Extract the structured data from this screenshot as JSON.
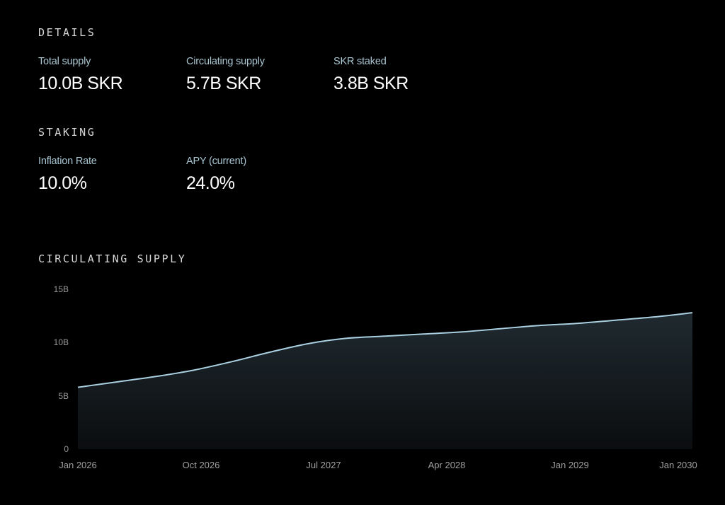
{
  "details": {
    "title": "DETAILS",
    "stats": [
      {
        "label": "Total supply",
        "value": "10.0B SKR"
      },
      {
        "label": "Circulating supply",
        "value": "5.7B SKR"
      },
      {
        "label": "SKR staked",
        "value": "3.8B SKR"
      }
    ]
  },
  "staking": {
    "title": "STAKING",
    "stats": [
      {
        "label": "Inflation Rate",
        "value": "10.0%"
      },
      {
        "label": "APY (current)",
        "value": "24.0%"
      }
    ]
  },
  "circulating": {
    "title": "CIRCULATING SUPPLY"
  },
  "colors": {
    "line": "#a9cfe0",
    "fill_top": "#1f2a30",
    "fill_bottom": "#0b0d0f",
    "label": "#a9c6d2"
  },
  "chart_data": {
    "type": "area",
    "title": "CIRCULATING SUPPLY",
    "xlabel": "",
    "ylabel": "",
    "ylim": [
      0,
      15
    ],
    "yticks": [
      "0",
      "5B",
      "10B",
      "15B"
    ],
    "xticks": [
      "Jan 2026",
      "Oct 2026",
      "Jul 2027",
      "Apr 2028",
      "Jan 2029",
      "Jan 2030"
    ],
    "grid": false,
    "legend": null,
    "unit": "B SKR",
    "x": [
      "Jan 2026",
      "Apr 2026",
      "Jul 2026",
      "Oct 2026",
      "Jan 2027",
      "Apr 2027",
      "Jul 2027",
      "Oct 2027",
      "Jan 2028",
      "Apr 2028",
      "Jul 2028",
      "Oct 2028",
      "Jan 2029",
      "Apr 2029",
      "Jul 2029",
      "Oct 2029",
      "Jan 2030"
    ],
    "series": [
      {
        "name": "Circulating supply",
        "values": [
          5.8,
          6.3,
          6.8,
          7.4,
          8.2,
          9.1,
          9.9,
          10.4,
          10.6,
          10.8,
          11.0,
          11.3,
          11.6,
          11.8,
          12.1,
          12.4,
          12.8
        ]
      }
    ]
  }
}
